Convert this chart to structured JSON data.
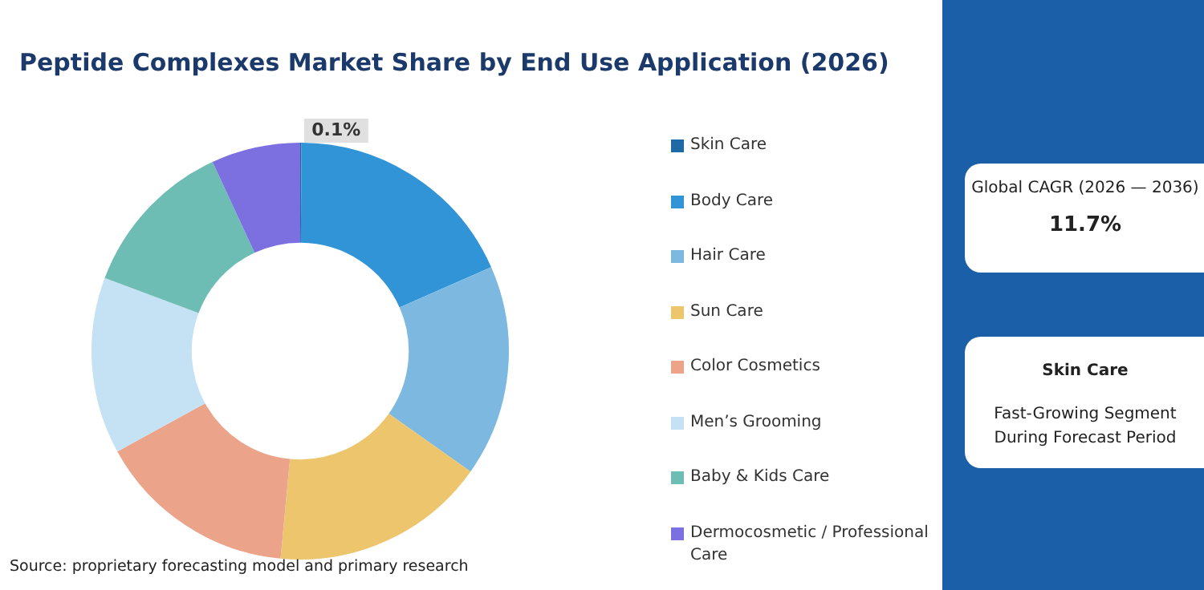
{
  "chart_data": {
    "type": "donut",
    "title": "Peptide Complexes Market Share by End Use Application (2026)",
    "categories": [
      "Skin Care",
      "Body Care",
      "Hair Care",
      "Sun Care",
      "Color Cosmetics",
      "Men’s Grooming",
      "Baby & Kids Care",
      "Dermocosmetic / Professional Care"
    ],
    "values": [
      0.1,
      18.3,
      16.4,
      16.7,
      15.5,
      13.7,
      12.4,
      6.9
    ],
    "colors": [
      "#1f6aa5",
      "#3194d6",
      "#7cb8e0",
      "#ecc56c",
      "#eba38a",
      "#c4e2f4",
      "#6dbdb4",
      "#7c6fe0"
    ],
    "value_labels": [
      "0.1%",
      null,
      null,
      null,
      null,
      null,
      null,
      null
    ],
    "legend": "right",
    "annotations": [
      "Global CAGR (2026 — 2036)",
      "11.7%",
      "Skin Care",
      "Fast-Growing Segment During Forecast Period",
      "Source: proprietary forecasting model and primary research"
    ]
  }
}
